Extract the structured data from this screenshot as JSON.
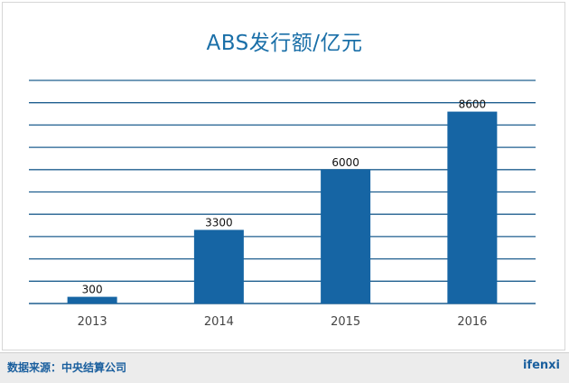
{
  "chart_data": {
    "type": "bar",
    "title": "ABS发行额/亿元",
    "categories": [
      "2013",
      "2014",
      "2015",
      "2016"
    ],
    "values": [
      300,
      3300,
      6000,
      8600
    ],
    "data_labels": [
      "300",
      "3300",
      "6000",
      "8600"
    ],
    "ylim": [
      0,
      10000
    ],
    "grid": true,
    "legend": "none",
    "bar_color": "#1665a4",
    "grid_color": "#1f5f8f"
  },
  "footer": {
    "source": "数据来源：中央结算公司",
    "brand": "ifenxi"
  }
}
